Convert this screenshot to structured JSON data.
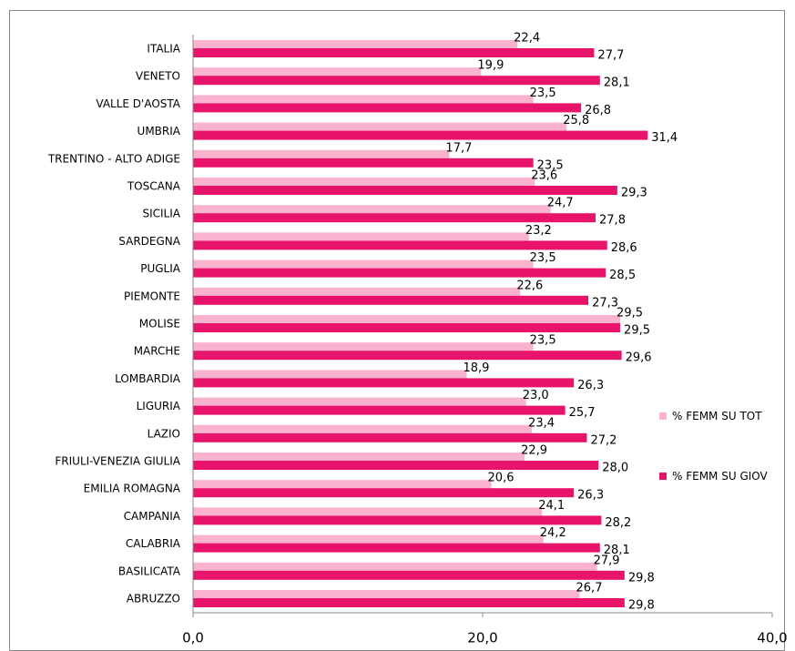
{
  "chart_data": {
    "type": "hbar",
    "categories": [
      "ITALIA",
      "VENETO",
      "VALLE D'AOSTA",
      "UMBRIA",
      "TRENTINO - ALTO ADIGE",
      "TOSCANA",
      "SICILIA",
      "SARDEGNA",
      "PUGLIA",
      "PIEMONTE",
      "MOLISE",
      "MARCHE",
      "LOMBARDIA",
      "LIGURIA",
      "LAZIO",
      "FRIULI-VENEZIA GIULIA",
      "EMILIA ROMAGNA",
      "CAMPANIA",
      "CALABRIA",
      "BASILICATA",
      "ABRUZZO"
    ],
    "series": [
      {
        "name": "% FEMM SU TOT",
        "color": "#f9b3cf",
        "values": [
          22.4,
          19.9,
          23.5,
          25.8,
          17.7,
          23.6,
          24.7,
          23.2,
          23.5,
          22.6,
          29.5,
          23.5,
          18.9,
          23.0,
          23.4,
          22.9,
          20.6,
          24.1,
          24.2,
          27.9,
          26.7
        ],
        "value_labels": [
          "22,4",
          "19,9",
          "23,5",
          "25,8",
          "17,7",
          "23,6",
          "24,7",
          "23,2",
          "23,5",
          "22,6",
          "29,5",
          "23,5",
          "18,9",
          "23,0",
          "23,4",
          "22,9",
          "20,6",
          "24,1",
          "24,2",
          "27,9",
          "26,7"
        ]
      },
      {
        "name": "% FEMM SU GIOV",
        "color": "#e8136b",
        "values": [
          27.7,
          28.1,
          26.8,
          31.4,
          23.5,
          29.3,
          27.8,
          28.6,
          28.5,
          27.3,
          29.5,
          29.6,
          26.3,
          25.7,
          27.2,
          28.0,
          26.3,
          28.2,
          28.1,
          29.8,
          29.8
        ],
        "value_labels": [
          "27,7",
          "28,1",
          "26,8",
          "31,4",
          "23,5",
          "29,3",
          "27,8",
          "28,6",
          "28,5",
          "27,3",
          "29,5",
          "29,6",
          "26,3",
          "25,7",
          "27,2",
          "28,0",
          "26,3",
          "28,2",
          "28,1",
          "29,8",
          "29,8"
        ]
      }
    ],
    "xlim": [
      0,
      40
    ],
    "xticks": [
      {
        "value": 0,
        "label": "0,0"
      },
      {
        "value": 20,
        "label": "20,0"
      },
      {
        "value": 40,
        "label": "40,0"
      }
    ],
    "legend": "right"
  }
}
